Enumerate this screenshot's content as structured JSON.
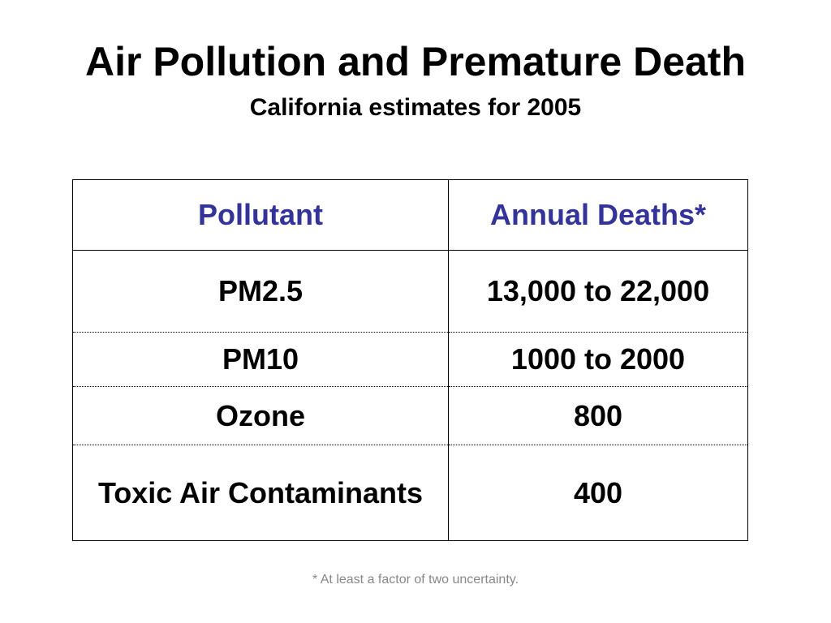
{
  "slide": {
    "title": "Air Pollution and Premature Death",
    "subtitle": "California estimates for 2005",
    "footnote": "* At least a factor of two uncertainty."
  },
  "table": {
    "headers": [
      "Pollutant",
      "Annual Deaths*"
    ],
    "rows": [
      {
        "pollutant": "PM2.5",
        "deaths": "13,000 to 22,000"
      },
      {
        "pollutant": "PM10",
        "deaths": "1000 to 2000"
      },
      {
        "pollutant": "Ozone",
        "deaths": "800"
      },
      {
        "pollutant": "Toxic Air Contaminants",
        "deaths": "400"
      }
    ]
  },
  "colors": {
    "header_text": "#333399",
    "footnote_text": "#888888"
  }
}
